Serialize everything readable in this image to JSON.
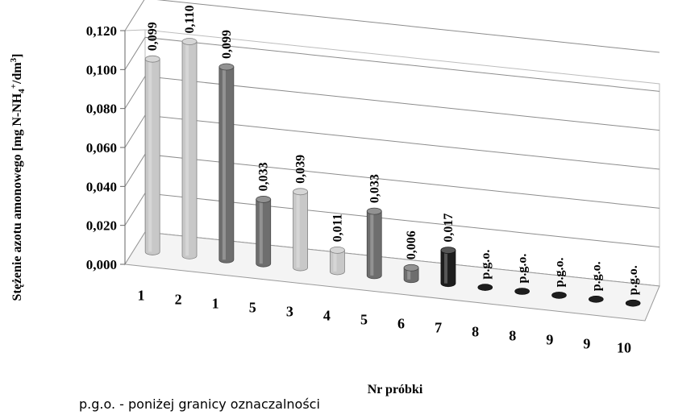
{
  "chart_data": {
    "type": "bar",
    "style": "3d-cylinder",
    "xlabel": "Nr próbki",
    "ylabel": "Stężenie azotu amonowego [mg N-NH4+/dm3]",
    "ylabel_parts": [
      "Stężenie azotu amonowego [mg N-NH",
      "4",
      "+",
      "/dm",
      "3",
      "]"
    ],
    "ylim": [
      0,
      0.12
    ],
    "yticks": [
      "0,000",
      "0,020",
      "0,040",
      "0,060",
      "0,080",
      "0,100",
      "0,120"
    ],
    "grid": true,
    "categories": [
      "1",
      "2",
      "1",
      "5",
      "3",
      "4",
      "5",
      "6",
      "7",
      "8",
      "8",
      "9",
      "9",
      "10"
    ],
    "values": [
      0.099,
      0.11,
      0.099,
      0.033,
      0.039,
      0.011,
      0.033,
      0.006,
      0.017,
      0,
      0,
      0,
      0,
      0
    ],
    "data_labels": [
      "0,099",
      "0,110",
      "0,099",
      "0,033",
      "0,039",
      "0,011",
      "0,033",
      "0,006",
      "0,017",
      "p.g.o.",
      "p.g.o.",
      "p.g.o.",
      "p.g.o.",
      "p.g.o."
    ],
    "bar_colors": [
      "#c8c8c8",
      "#c8c8c8",
      "#6e6e6e",
      "#6e6e6e",
      "#c8c8c8",
      "#c8c8c8",
      "#6e6e6e",
      "#6e6e6e",
      "#1e1e1e",
      "#1e1e1e",
      "#1e1e1e",
      "#1e1e1e",
      "#1e1e1e",
      "#1e1e1e"
    ]
  },
  "footnote": "p.g.o. - poniżej granicy oznaczalności"
}
